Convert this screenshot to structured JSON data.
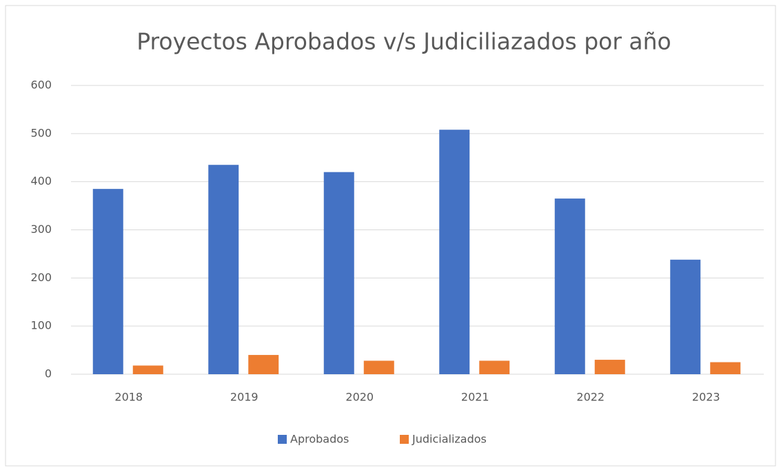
{
  "chart_data": {
    "type": "bar",
    "title": "Proyectos Aprobados v/s  Judiciliazados por año",
    "categories": [
      "2018",
      "2019",
      "2020",
      "2021",
      "2022",
      "2023"
    ],
    "series": [
      {
        "name": "Aprobados",
        "color": "#4472c4",
        "values": [
          385,
          435,
          420,
          508,
          365,
          238
        ]
      },
      {
        "name": "Judicializados",
        "color": "#ed7d31",
        "values": [
          18,
          40,
          28,
          28,
          30,
          25
        ]
      }
    ],
    "ylim": [
      0,
      600
    ],
    "yticks": [
      0,
      100,
      200,
      300,
      400,
      500,
      600
    ],
    "grid": true,
    "legend": "bottom"
  }
}
